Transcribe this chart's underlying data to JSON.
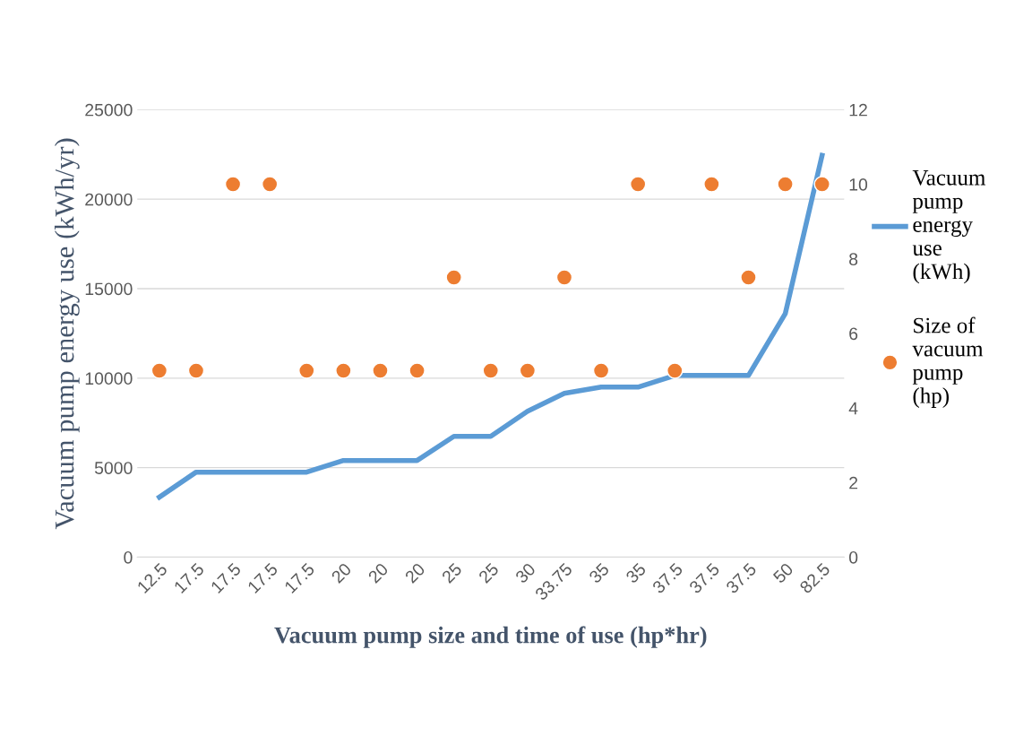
{
  "chart_data": {
    "type": "line",
    "xlabel": "Vacuum pump size and time of use (hp*hr)",
    "ylabel": "Vacuum pump energy use (kWh/yr)",
    "categories": [
      "12.5",
      "17.5",
      "17.5",
      "17.5",
      "17.5",
      "20",
      "20",
      "20",
      "25",
      "25",
      "30",
      "33.75",
      "35",
      "35",
      "37.5",
      "37.5",
      "37.5",
      "50",
      "82.5"
    ],
    "series": [
      {
        "name": "Vacuum pump energy use (kWh)",
        "color": "#5b9bd5",
        "values": [
          3350,
          4750,
          4750,
          4750,
          4750,
          5400,
          5400,
          5400,
          6750,
          6750,
          8150,
          9150,
          9500,
          9500,
          10150,
          10150,
          10150,
          13600,
          22450
        ]
      },
      {
        "name": "Size of vacuum pump (hp)",
        "type": "scatter",
        "axis": "y2",
        "color": "#ed7d31",
        "marker": "circle",
        "values": [
          5,
          5,
          10,
          10,
          5,
          5,
          5,
          5,
          7.5,
          5,
          5,
          7.5,
          5,
          10,
          5,
          10,
          7.5,
          10,
          10
        ]
      }
    ],
    "ylim": [
      0,
      25000
    ],
    "yticks": [
      0,
      5000,
      10000,
      15000,
      20000,
      25000
    ],
    "y2lim": [
      0,
      12
    ],
    "y2ticks": [
      0,
      2,
      4,
      6,
      8,
      10,
      12
    ],
    "grid": "y",
    "legend": "right"
  }
}
